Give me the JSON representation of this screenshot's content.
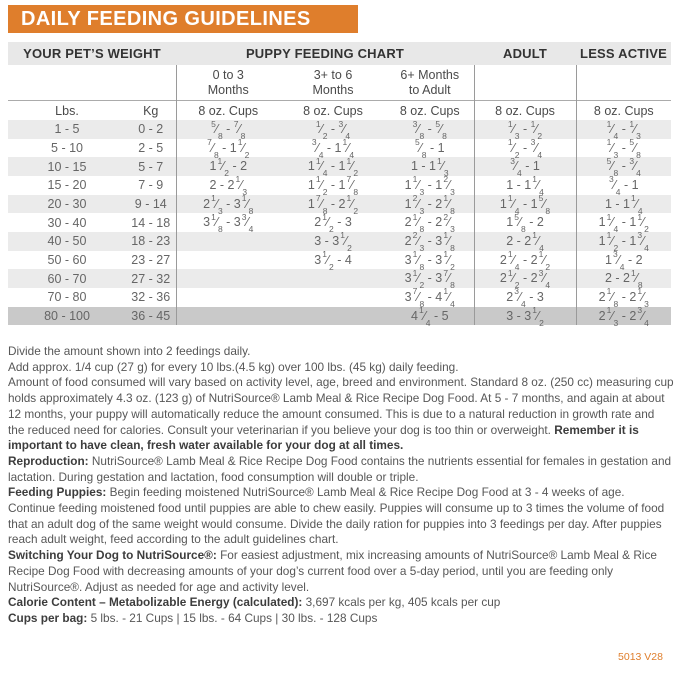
{
  "title": "DAILY FEEDING GUIDELINES",
  "code": "5013 V28",
  "colors": {
    "banner_orange": "#DF7E2C",
    "header_gray": "#E8E8E8",
    "stripe_gray": "#EBEBEB",
    "last_row_gray": "#C9C9C9",
    "code_orange": "#DF7E2C"
  },
  "table": {
    "group_headers": {
      "weight": "YOUR PET’S WEIGHT",
      "puppy": "PUPPY FEEDING CHART",
      "adult": "ADULT",
      "less_active": "LESS ACTIVE"
    },
    "month_headers": [
      "0 to 3 Months",
      "3+ to 6 Months",
      "6+ Months to Adult"
    ],
    "unit_row": [
      "Lbs.",
      "Kg",
      "8 oz. Cups",
      "8 oz. Cups",
      "8 oz. Cups",
      "8 oz. Cups",
      "8 oz. Cups"
    ],
    "columns": [
      "lbs",
      "kg",
      "months_0_3",
      "months_3_6",
      "months_6_to_adult",
      "adult",
      "less_active"
    ],
    "rows": [
      [
        "1 - 5",
        "0 - 2",
        "5/8 - 7/8",
        "1/2 - 3/4",
        "3/8 - 5/8",
        "1/3 - 1/2",
        "1/4 - 1/3"
      ],
      [
        "5 - 10",
        "2 - 5",
        "7/8 - 1 1/2",
        "3/4 - 1 1/4",
        "5/8 - 1",
        "1/2 - 3/4",
        "1/3 - 5/8"
      ],
      [
        "10 - 15",
        "5 - 7",
        "1 1/2 - 2",
        "1 1/4 - 1 1/2",
        "1 - 1 1/3",
        "3/4 - 1",
        "5/8 - 3/4"
      ],
      [
        "15 - 20",
        "7 - 9",
        "2 - 2 1/3",
        "1 1/2 - 1 7/8",
        "1 1/3 - 1 2/3",
        "1 - 1 1/4",
        "3/4 - 1"
      ],
      [
        "20 - 30",
        "9 - 14",
        "2 1/3 - 3 1/8",
        "1 7/8 - 2 1/2",
        "1 2/3 - 2 1/8",
        "1 1/4 - 1 5/8",
        "1 - 1 1/4"
      ],
      [
        "30 - 40",
        "14 - 18",
        "3 1/8 - 3 3/4",
        "2 1/2 - 3",
        "2 1/8 - 2 2/3",
        "1 5/8 - 2",
        "1 1/4 - 1 1/2"
      ],
      [
        "40 - 50",
        "18 - 23",
        "",
        "3 - 3 1/2",
        "2 2/3 - 3 1/8",
        "2 - 2 1/4",
        "1 1/2 - 1 3/4"
      ],
      [
        "50 - 60",
        "23 - 27",
        "",
        "3 1/2 - 4",
        "3 1/8 - 3 1/2",
        "2 1/4 - 2 1/2",
        "1 3/4 - 2"
      ],
      [
        "60 - 70",
        "27 - 32",
        "",
        "",
        "3 1/2 - 3 7/8",
        "2 1/2 - 2 3/4",
        "2 - 2 1/8"
      ],
      [
        "70 - 80",
        "32 - 36",
        "",
        "",
        "3 7/8 - 4 1/4",
        "2 3/4 - 3",
        "2 1/8 - 2 1/3"
      ],
      [
        "80 - 100",
        "36 - 45",
        "",
        "",
        "4 1/4 - 5",
        "3 - 3 1/2",
        "2 1/3 - 2 3/4"
      ]
    ]
  },
  "notes": [
    {
      "lead": "",
      "text": "Divide the amount shown into 2 feedings daily.",
      "tail": ""
    },
    {
      "lead": "",
      "text": "Add approx. 1/4 cup (27 g) for every 10 lbs.(4.5 kg) over 100 lbs. (45 kg) daily feeding.",
      "tail": ""
    },
    {
      "lead": "",
      "text": "Amount of food consumed will vary based on activity level, age, breed and environment. Standard 8 oz. (250 cc) measuring cup holds approximately 4.3 oz. (123 g) of NutriSource® Lamb Meal & Rice Recipe Dog Food. At 5 - 7 months, and again at about 12 months, your puppy will automatically reduce the amount consumed. This is due to a natural reduction in growth rate and the reduced need for calories. Consult your veterinarian if you believe your dog is too thin or overweight.",
      "tail": "Remember it is important to have clean, fresh water available for your dog at all times."
    },
    {
      "lead": "Reproduction:",
      "text": "NutriSource® Lamb Meal & Rice Recipe Dog Food contains the nutrients essential for females in gestation and lactation. During gestation and lactation, food consumption will double or triple.",
      "tail": ""
    },
    {
      "lead": "Feeding Puppies:",
      "text": "Begin feeding moistened NutriSource® Lamb Meal & Rice Recipe Dog Food at 3 - 4 weeks of age. Continue feeding moistened food until puppies are able to chew easily. Puppies will consume up to 3 times the volume of food that an adult dog of the same weight would consume. Divide the daily ration for puppies into 3 feedings per day. After puppies reach adult weight, feed according to the adult guidelines chart.",
      "tail": ""
    },
    {
      "lead": "Switching Your Dog to NutriSource®:",
      "text": "For easiest adjustment, mix increasing amounts of NutriSource® Lamb Meal & Rice Recipe Dog Food with decreasing amounts of your dog’s current food over a 5-day period, until you are feeding only NutriSource®. Adjust as needed for age and activity level.",
      "tail": ""
    },
    {
      "lead": "Calorie Content – Metabolizable Energy (calculated):",
      "text": "3,697 kcals per kg, 405 kcals per cup",
      "tail": ""
    },
    {
      "lead": "Cups per bag:",
      "text": "5 lbs. - 21 Cups  |  15 lbs. - 64 Cups  |  30 lbs. - 128 Cups",
      "tail": ""
    }
  ]
}
